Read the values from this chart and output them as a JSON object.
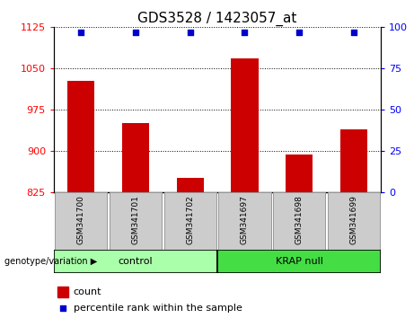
{
  "title": "GDS3528 / 1423057_at",
  "categories": [
    "GSM341700",
    "GSM341701",
    "GSM341702",
    "GSM341697",
    "GSM341698",
    "GSM341699"
  ],
  "bar_values": [
    1028,
    950,
    852,
    1068,
    893,
    940
  ],
  "percentile_values": [
    99,
    99,
    99,
    99,
    99,
    99
  ],
  "bar_color": "#cc0000",
  "percentile_color": "#0000cc",
  "ylim_left": [
    825,
    1125
  ],
  "ylim_right": [
    0,
    100
  ],
  "yticks_left": [
    825,
    900,
    975,
    1050,
    1125
  ],
  "yticks_right": [
    0,
    25,
    50,
    75,
    100
  ],
  "groups": [
    {
      "label": "control",
      "indices": [
        0,
        1,
        2
      ],
      "color": "#aaffaa"
    },
    {
      "label": "KRAP null",
      "indices": [
        3,
        4,
        5
      ],
      "color": "#44dd44"
    }
  ],
  "group_label_prefix": "genotype/variation",
  "legend_count_label": "count",
  "legend_percentile_label": "percentile rank within the sample",
  "bar_width": 0.5,
  "grid_linestyle": ":",
  "grid_color": "#000000",
  "background_color": "#ffffff",
  "plot_bg_color": "#ffffff",
  "sample_box_color": "#cccccc",
  "title_fontsize": 11,
  "tick_fontsize": 8,
  "cat_fontsize": 6.5,
  "group_fontsize": 8,
  "legend_fontsize": 8
}
